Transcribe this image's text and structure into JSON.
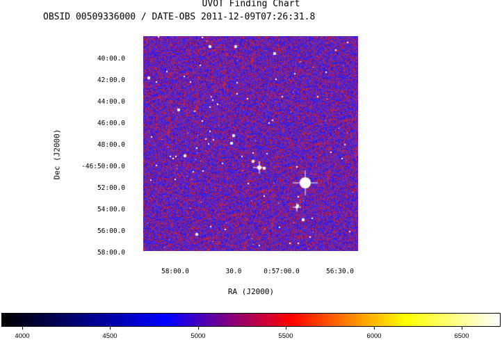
{
  "title": "UVOT Finding Chart",
  "subtitle": "OBSID 00509336000 / DATE-OBS 2011-12-09T07:26:31.8",
  "axes": {
    "xlabel": "RA (J2000)",
    "ylabel": "Dec (J2000)",
    "dec_ticks": [
      "40:00.0",
      "42:00.0",
      "44:00.0",
      "46:00.0",
      "48:00.0",
      "-46:50:00.0",
      "52:00.0",
      "54:00.0",
      "56:00.0",
      "58:00.0"
    ],
    "ra_ticks": [
      "58:00.0",
      "30.0",
      "0:57:00.0",
      "56:30.0"
    ]
  },
  "colorbar": {
    "ticks": [
      "4000",
      "4500",
      "5000",
      "5500",
      "6000",
      "6500"
    ],
    "colors": [
      "#000000",
      "#0000ff",
      "#ff0000",
      "#ffff00",
      "#ffffff"
    ]
  },
  "image_colors": {
    "background": "#4a2fd8",
    "noise_red": "#e0211f",
    "noise_blue": "#2a14e8",
    "star": "#ffffff"
  }
}
